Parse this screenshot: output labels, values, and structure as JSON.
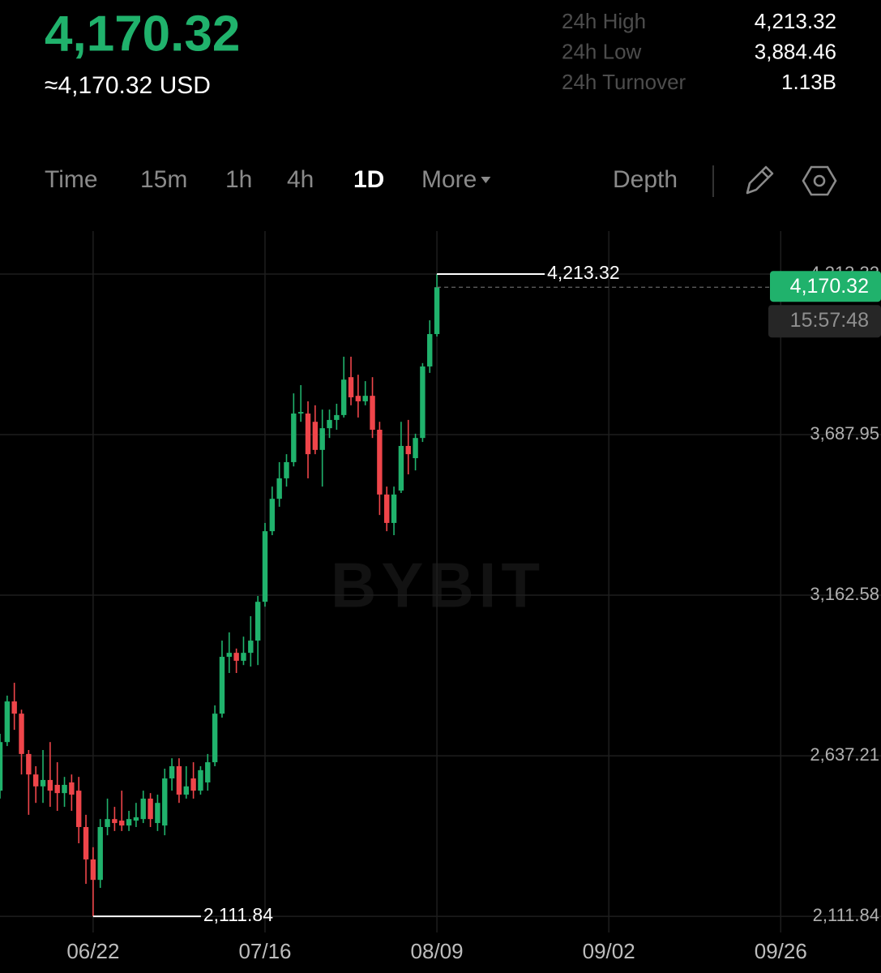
{
  "header": {
    "price": "4,170.32",
    "fiat": "≈4,170.32 USD",
    "stats": [
      {
        "label": "24h High",
        "value": "4,213.32"
      },
      {
        "label": "24h Low",
        "value": "3,884.46"
      },
      {
        "label": "24h Turnover",
        "value": "1.13B"
      }
    ]
  },
  "toolbar": {
    "tabs": [
      "Time",
      "15m",
      "1h",
      "4h",
      "1D",
      "More"
    ],
    "active_tab": "1D",
    "depth": "Depth"
  },
  "chart_data": {
    "type": "candlestick",
    "watermark": "BYBIT",
    "up_color": "#20b26c",
    "down_color": "#ef454a",
    "open": [
      2523,
      2682,
      2815,
      2775,
      2643,
      2576,
      2537,
      2558,
      2542,
      2515,
      2550,
      2523,
      2404,
      2298,
      2231,
      2404,
      2430,
      2425,
      2409,
      2425,
      2430,
      2497,
      2417,
      2409,
      2563,
      2603,
      2510,
      2563,
      2523,
      2550,
      2616,
      2775,
      2961,
      2974,
      2948,
      2974,
      3014,
      3141,
      3372,
      3478,
      3545,
      3598,
      3757,
      3757,
      3730,
      3638,
      3709,
      3736,
      3752,
      3876,
      3815,
      3797,
      3815,
      3704,
      3492,
      3399,
      3505,
      3651,
      3611,
      3677,
      3911,
      4017
    ],
    "high": [
      2709,
      2834,
      2876,
      2788,
      2656,
      2603,
      2656,
      2682,
      2616,
      2568,
      2576,
      2568,
      2444,
      2338,
      2430,
      2497,
      2470,
      2523,
      2457,
      2483,
      2523,
      2515,
      2510,
      2595,
      2629,
      2629,
      2603,
      2616,
      2603,
      2643,
      2802,
      3014,
      3041,
      2988,
      3027,
      3094,
      3160,
      3399,
      3518,
      3598,
      3624,
      3823,
      3850,
      3797,
      3784,
      3770,
      3770,
      3789,
      3943,
      3943,
      3884,
      3863,
      3876,
      3730,
      3518,
      3518,
      3730,
      3736,
      3691,
      3922,
      4062,
      4213.32
    ],
    "low": [
      2497,
      2669,
      2722,
      2576,
      2444,
      2483,
      2483,
      2470,
      2457,
      2470,
      2457,
      2351,
      2218,
      2111.84,
      2205,
      2377,
      2391,
      2391,
      2391,
      2404,
      2417,
      2404,
      2391,
      2377,
      2523,
      2483,
      2497,
      2497,
      2510,
      2523,
      2603,
      2762,
      2908,
      2908,
      2934,
      2929,
      2934,
      3125,
      3359,
      3452,
      3518,
      3584,
      3730,
      3545,
      3624,
      3518,
      3677,
      3704,
      3744,
      3784,
      3744,
      3784,
      3677,
      3425,
      3372,
      3359,
      3497,
      3558,
      3571,
      3664,
      3890,
      4009
    ],
    "close": [
      2682,
      2815,
      2775,
      2643,
      2576,
      2537,
      2558,
      2523,
      2515,
      2542,
      2510,
      2404,
      2298,
      2231,
      2404,
      2430,
      2417,
      2409,
      2430,
      2436,
      2497,
      2430,
      2483,
      2563,
      2603,
      2510,
      2537,
      2523,
      2590,
      2616,
      2775,
      2961,
      2974,
      2948,
      2974,
      3014,
      3141,
      3372,
      3478,
      3545,
      3598,
      3757,
      3762,
      3624,
      3638,
      3709,
      3736,
      3752,
      3868,
      3810,
      3797,
      3815,
      3704,
      3492,
      3399,
      3492,
      3651,
      3624,
      3677,
      3911,
      4017,
      4170.32
    ],
    "xlim": [
      0,
      123
    ],
    "xticks": [
      {
        "value": 13,
        "label": "06/22"
      },
      {
        "value": 37,
        "label": "07/16"
      },
      {
        "value": 61,
        "label": "08/09"
      },
      {
        "value": 85,
        "label": "09/02"
      },
      {
        "value": 109,
        "label": "09/26"
      }
    ],
    "ylim": [
      2059,
      4354
    ],
    "yticks": [
      {
        "value": 2111.84,
        "label": "2,111.84"
      },
      {
        "value": 2637.21,
        "label": "2,637.21"
      },
      {
        "value": 3162.58,
        "label": "3,162.58"
      },
      {
        "value": 3687.95,
        "label": "3,687.95"
      },
      {
        "value": 4213.32,
        "label": "4,213.32"
      }
    ],
    "grid": true,
    "high_marker": {
      "value": 4213.32,
      "label": "4,213.32"
    },
    "low_marker": {
      "value": 2111.84,
      "label": "2,111.84"
    },
    "last_price": {
      "value": 4170.32,
      "label": "4,170.32"
    },
    "countdown": "15:57:48"
  }
}
